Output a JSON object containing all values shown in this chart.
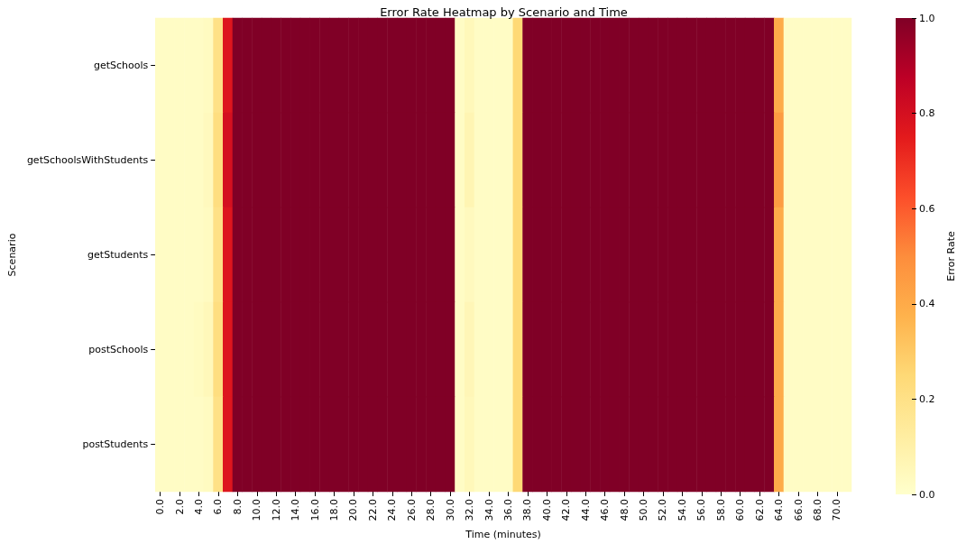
{
  "chart_data": {
    "type": "heatmap",
    "title": "Error Rate Heatmap by Scenario and Time",
    "xlabel": "Time (minutes)",
    "ylabel": "Scenario",
    "clabel": "Error Rate",
    "categories": [
      "0.0",
      null,
      "2.0",
      null,
      "4.0",
      null,
      "6.0",
      null,
      "8.0",
      null,
      "10.0",
      null,
      "12.0",
      null,
      "14.0",
      null,
      "16.0",
      null,
      "18.0",
      null,
      "20.0",
      null,
      "22.0",
      null,
      "24.0",
      null,
      "26.0",
      null,
      "28.0",
      null,
      "30.0",
      null,
      "32.0",
      null,
      "34.0",
      null,
      "36.0",
      null,
      "38.0",
      null,
      "40.0",
      null,
      "42.0",
      null,
      "44.0",
      null,
      "46.0",
      null,
      "48.0",
      null,
      "50.0",
      null,
      "52.0",
      null,
      "54.0",
      null,
      "56.0",
      null,
      "58.0",
      null,
      "60.0",
      null,
      "62.0",
      null,
      "64.0",
      null,
      "66.0",
      null,
      "68.0",
      null,
      "70.0",
      null
    ],
    "y_categories": [
      "getSchools",
      "getSchoolsWithStudents",
      "getStudents",
      "postSchools",
      "postStudents"
    ],
    "cells": [
      [
        0.02,
        0.02,
        0.02,
        0.02,
        0.02,
        0.03,
        0.2,
        0.77,
        1,
        1,
        1,
        1,
        1,
        1,
        1,
        1,
        1,
        1,
        1,
        1,
        1,
        1,
        1,
        1,
        1,
        1,
        1,
        1,
        1,
        1,
        1,
        0.02,
        0.05,
        0.02,
        0.02,
        0.02,
        0.02,
        0.25,
        1,
        1,
        1,
        1,
        1,
        1,
        1,
        1,
        1,
        1,
        1,
        1,
        1,
        1,
        1,
        1,
        1,
        1,
        1,
        1,
        1,
        1,
        1,
        1,
        1,
        1,
        0.4,
        0.02,
        0.02,
        0.02,
        0.02,
        0.02,
        0.02,
        0.02
      ],
      [
        0.02,
        0.02,
        0.02,
        0.02,
        0.02,
        0.04,
        0.22,
        0.8,
        1,
        1,
        1,
        1,
        1,
        1,
        1,
        1,
        1,
        1,
        1,
        1,
        1,
        1,
        1,
        1,
        1,
        1,
        1,
        1,
        1,
        1,
        1,
        0.02,
        0.07,
        0.02,
        0.02,
        0.02,
        0.02,
        0.25,
        1,
        1,
        1,
        1,
        1,
        1,
        1,
        1,
        1,
        1,
        1,
        1,
        1,
        1,
        1,
        1,
        1,
        1,
        1,
        1,
        1,
        1,
        1,
        1,
        1,
        1,
        0.45,
        0.02,
        0.02,
        0.02,
        0.02,
        0.02,
        0.02,
        0.02
      ],
      [
        0.02,
        0.02,
        0.02,
        0.02,
        0.02,
        0.03,
        0.2,
        0.77,
        1,
        1,
        1,
        1,
        1,
        1,
        1,
        1,
        1,
        1,
        1,
        1,
        1,
        1,
        1,
        1,
        1,
        1,
        1,
        1,
        1,
        1,
        1,
        0.02,
        0.04,
        0.02,
        0.02,
        0.02,
        0.02,
        0.25,
        1,
        1,
        1,
        1,
        1,
        1,
        1,
        1,
        1,
        1,
        1,
        1,
        1,
        1,
        1,
        1,
        1,
        1,
        1,
        1,
        1,
        1,
        1,
        1,
        1,
        1,
        0.4,
        0.02,
        0.02,
        0.02,
        0.02,
        0.02,
        0.02,
        0.02
      ],
      [
        0.02,
        0.02,
        0.02,
        0.02,
        0.03,
        0.05,
        0.22,
        0.77,
        1,
        1,
        1,
        1,
        1,
        1,
        1,
        1,
        1,
        1,
        1,
        1,
        1,
        1,
        1,
        1,
        1,
        1,
        1,
        1,
        1,
        1,
        1,
        0.02,
        0.06,
        0.02,
        0.02,
        0.02,
        0.02,
        0.25,
        1,
        1,
        1,
        1,
        1,
        1,
        1,
        1,
        1,
        1,
        1,
        1,
        1,
        1,
        1,
        1,
        1,
        1,
        1,
        1,
        1,
        1,
        1,
        1,
        1,
        1,
        0.4,
        0.02,
        0.02,
        0.02,
        0.02,
        0.02,
        0.02,
        0.02
      ],
      [
        0.02,
        0.02,
        0.02,
        0.02,
        0.02,
        0.03,
        0.2,
        0.77,
        1,
        1,
        1,
        1,
        1,
        1,
        1,
        1,
        1,
        1,
        1,
        1,
        1,
        1,
        1,
        1,
        1,
        1,
        1,
        1,
        1,
        1,
        1,
        0.02,
        0.05,
        0.02,
        0.02,
        0.02,
        0.02,
        0.25,
        1,
        1,
        1,
        1,
        1,
        1,
        1,
        1,
        1,
        1,
        1,
        1,
        1,
        1,
        1,
        1,
        1,
        1,
        1,
        1,
        1,
        1,
        1,
        1,
        1,
        1,
        0.4,
        0.02,
        0.02,
        0.02,
        0.02,
        0.02,
        0.02,
        0.02
      ]
    ],
    "clim": [
      0,
      1
    ],
    "cticks": [
      {
        "value": 0,
        "label": "0.0"
      },
      {
        "value": 0.2,
        "label": "0.2"
      },
      {
        "value": 0.4,
        "label": "0.4"
      },
      {
        "value": 0.6,
        "label": "0.6"
      },
      {
        "value": 0.8,
        "label": "0.8"
      },
      {
        "value": 1,
        "label": "1.0"
      }
    ]
  }
}
